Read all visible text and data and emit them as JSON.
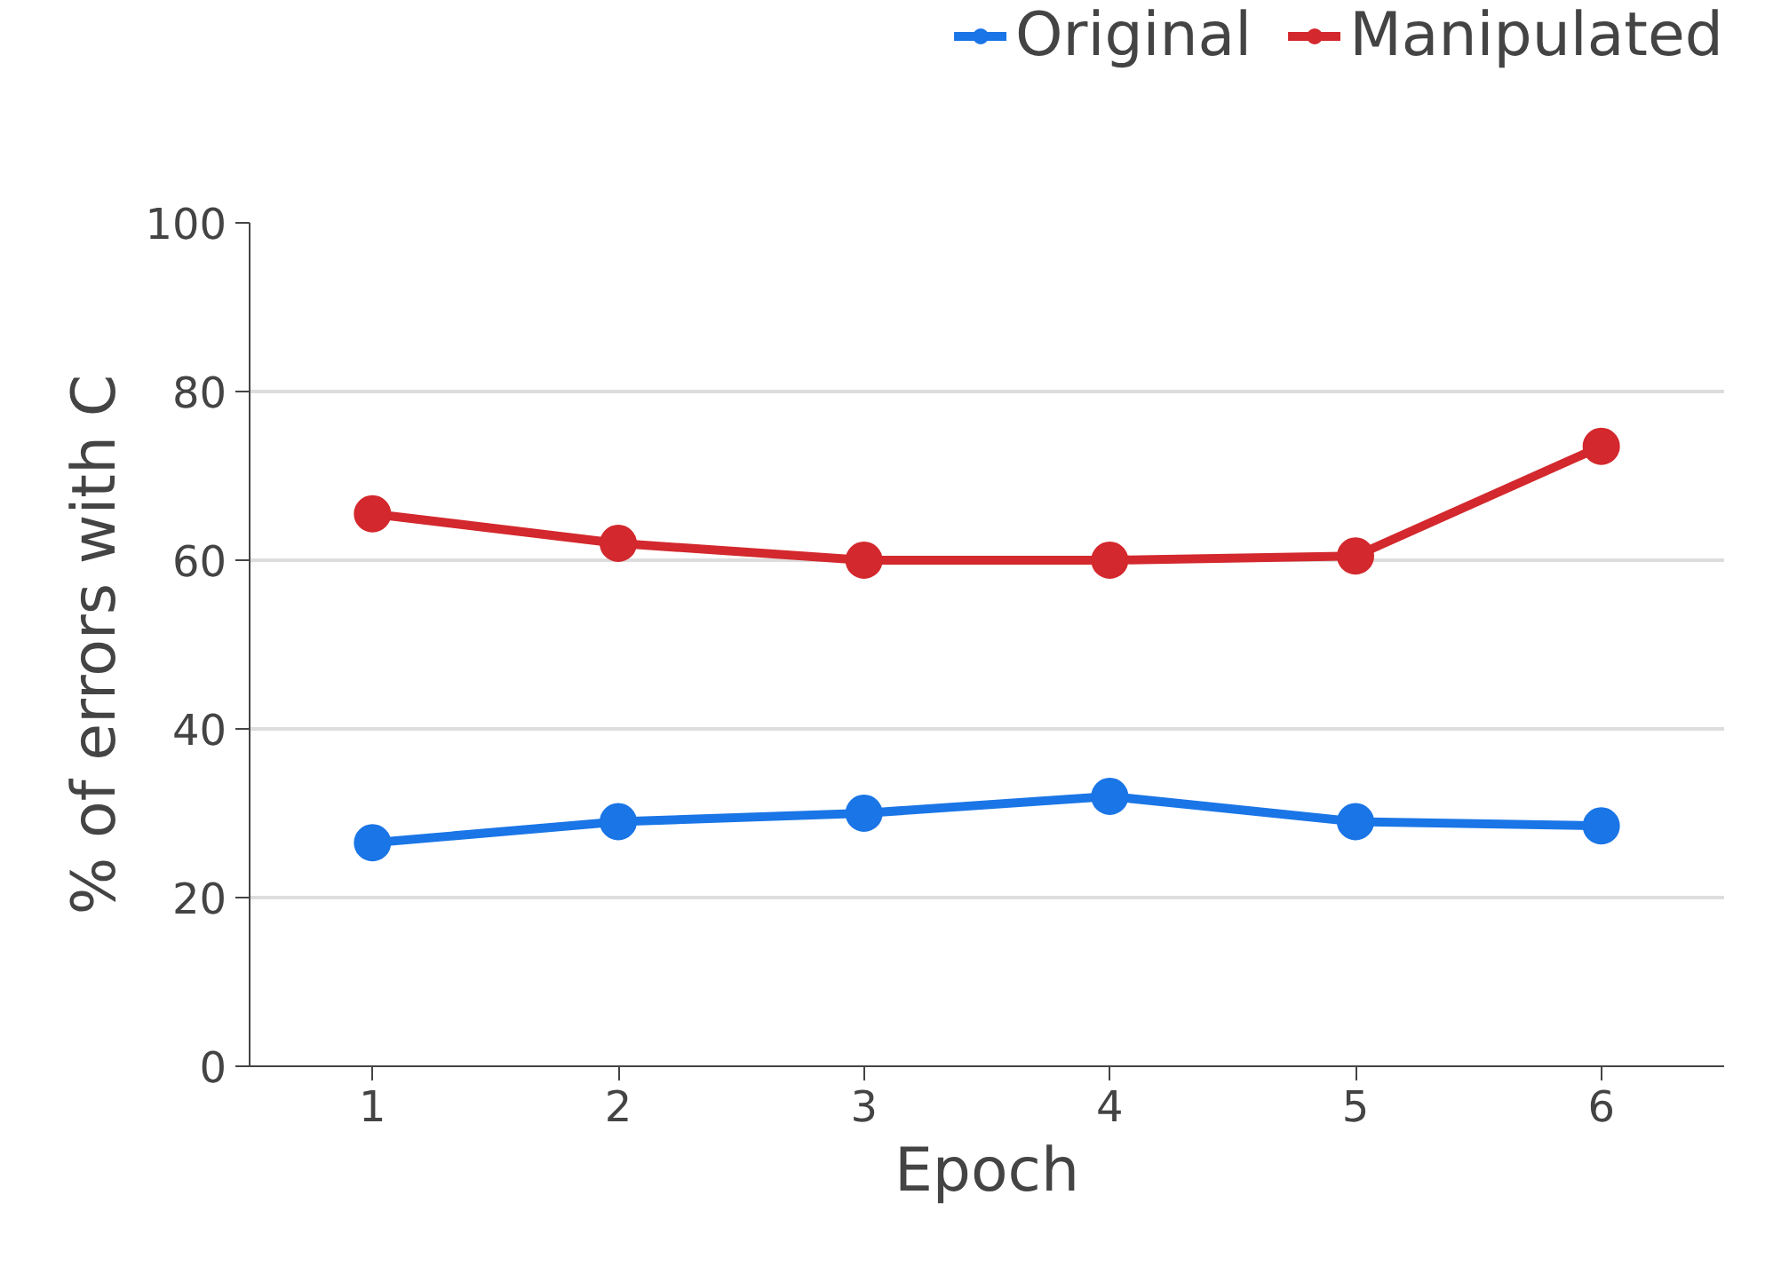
{
  "chart_data": {
    "type": "line",
    "xlabel": "Epoch",
    "ylabel": "% of errors with C",
    "x": [
      1,
      2,
      3,
      4,
      5,
      6
    ],
    "series": [
      {
        "name": "Original",
        "color": "#1a75e6",
        "values": [
          26.5,
          29,
          30,
          32,
          29,
          28.5
        ]
      },
      {
        "name": "Manipulated",
        "color": "#d3282d",
        "values": [
          65.5,
          62,
          60,
          60,
          60.5,
          73.5
        ]
      }
    ],
    "xlim": [
      0.5,
      6.5
    ],
    "xticks": [
      1,
      2,
      3,
      4,
      5,
      6
    ],
    "ylim": [
      0,
      100
    ],
    "yticks": [
      0,
      20,
      40,
      60,
      80,
      100
    ],
    "grid": "y",
    "legend": "top right",
    "marker": "circle",
    "line_style": "solid"
  }
}
